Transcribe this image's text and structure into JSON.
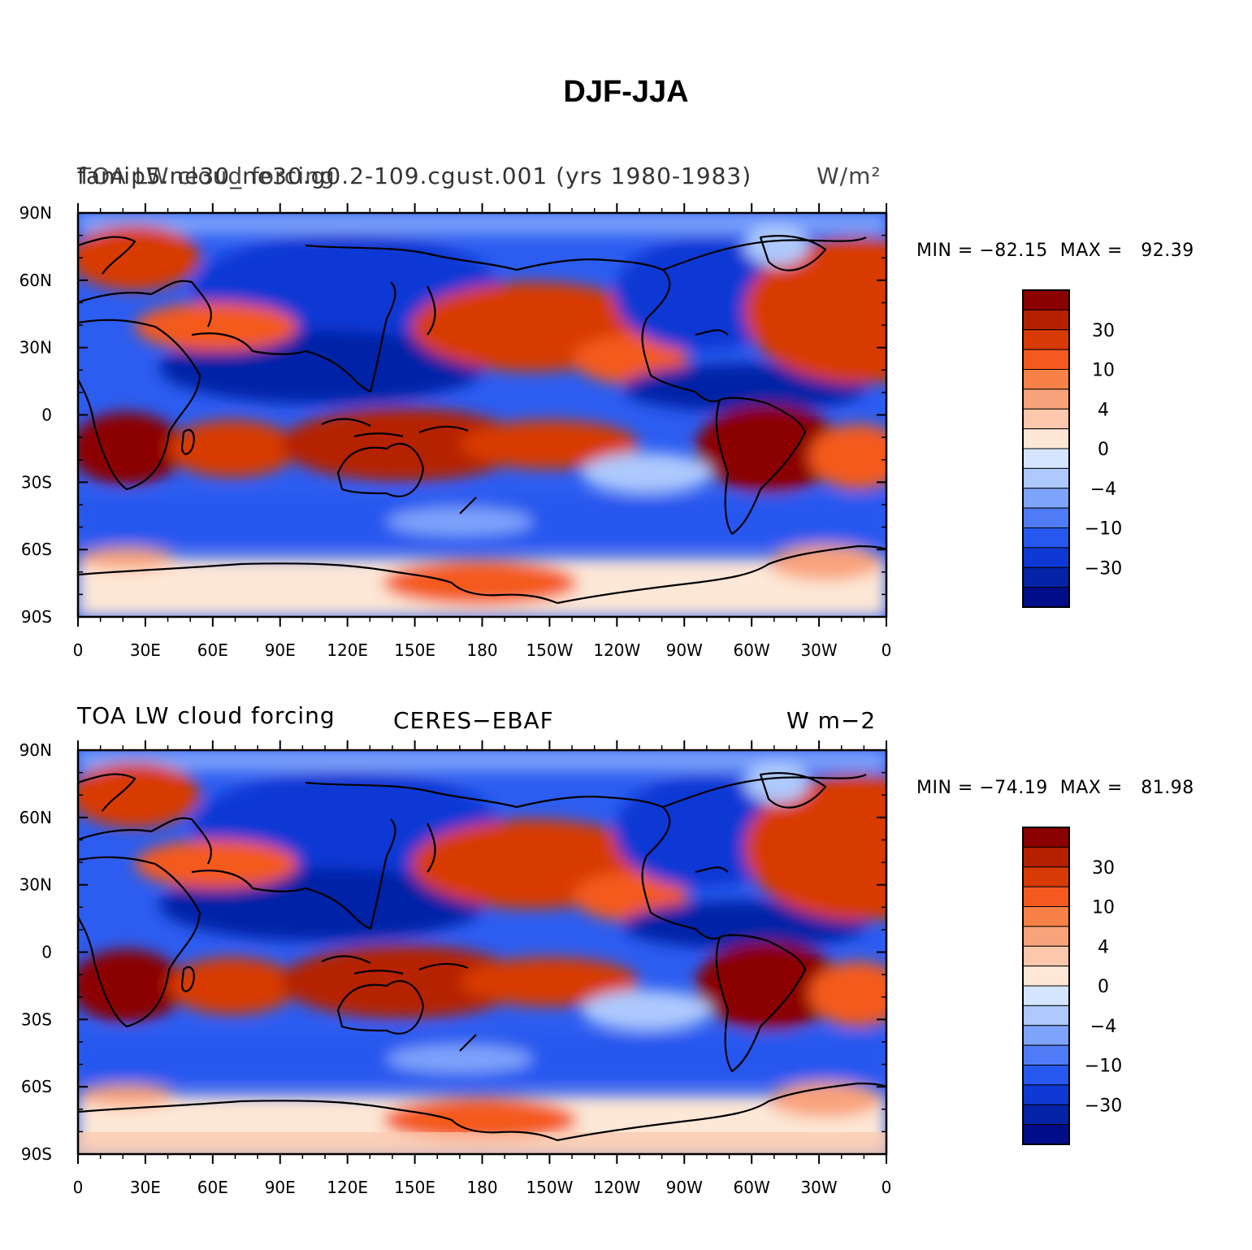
{
  "figure": {
    "title": "DJF-JJA"
  },
  "panels": [
    {
      "title_left": "TOA LW cloud forcing",
      "title_left_overlap": "famip5.ne30_ne30.g0.2-109.cgust.001 (yrs 1980-1983)",
      "title_right": "W/m²",
      "stats": "MIN = −82.15  MAX =   92.39"
    },
    {
      "title_left": "TOA LW cloud forcing",
      "title_center": "CERES−EBAF",
      "title_right": "W m−2",
      "stats": "MIN = −74.19  MAX =   81.98"
    }
  ],
  "axes": {
    "lat_ticks": [
      "90N",
      "60N",
      "30N",
      "0",
      "30S",
      "60S",
      "90S"
    ],
    "lon_ticks": [
      "0",
      "30E",
      "60E",
      "90E",
      "120E",
      "150E",
      "180",
      "150W",
      "120W",
      "90W",
      "60W",
      "30W",
      "0"
    ]
  },
  "colorbar": {
    "labels": [
      "30",
      "10",
      "4",
      "0",
      "−4",
      "−10",
      "−30"
    ],
    "colors": [
      "#8b0000",
      "#b52000",
      "#d83a05",
      "#f45a1f",
      "#f78146",
      "#f9a37c",
      "#fbc8ad",
      "#fde7d6",
      "#d4e6ff",
      "#adc9fd",
      "#7ea3fb",
      "#4f7cf6",
      "#2657ee",
      "#0f39d4",
      "#0523a6",
      "#000d88"
    ]
  }
}
